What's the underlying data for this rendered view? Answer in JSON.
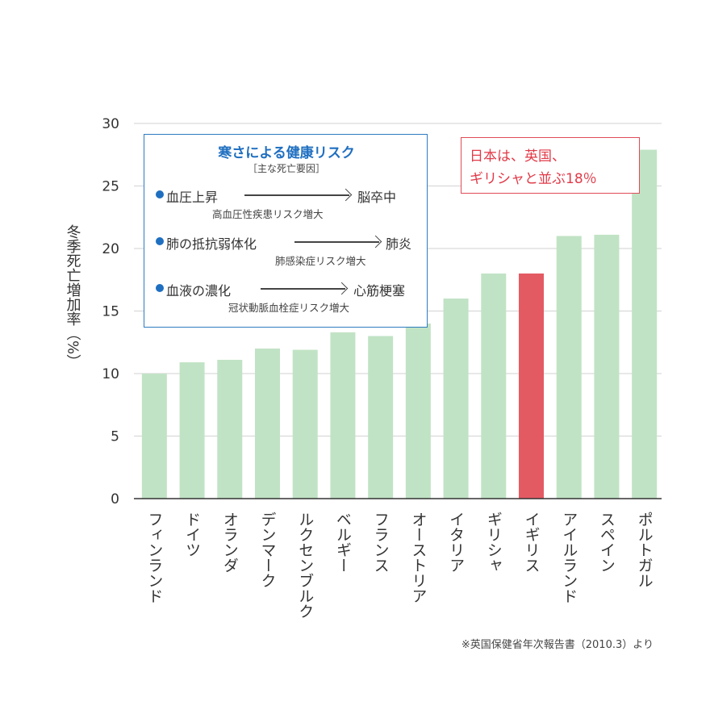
{
  "chart_data": {
    "type": "bar",
    "ylabel": "冬季死亡増加率（%）",
    "ylim": [
      0,
      30
    ],
    "yticks": [
      0,
      5,
      10,
      15,
      20,
      25,
      30
    ],
    "grid": true,
    "categories": [
      "フィンランド",
      "ドイツ",
      "オランダ",
      "デンマーク",
      "ルクセンブルク",
      "ベルギー",
      "フランス",
      "オーストリア",
      "イタリア",
      "ギリシャ",
      "イギリス",
      "アイルランド",
      "スペイン",
      "ポルトガル"
    ],
    "values": [
      10.0,
      10.9,
      11.1,
      12.0,
      11.9,
      13.3,
      13.0,
      14.0,
      16.0,
      18.0,
      18.0,
      21.0,
      21.1,
      27.9
    ],
    "highlight": "イギリス",
    "colors": {
      "bar": "#c1e3c5",
      "highlight": "#e45a63",
      "grid": "#d9d9d9",
      "axis": "#333333"
    }
  },
  "risk_box": {
    "title": "寒さによる健康リスク",
    "subtitle": "［主な死亡要因］",
    "items": [
      {
        "cause": "血圧上昇",
        "effect": "脳卒中",
        "note": "高血圧性疾患リスク増大"
      },
      {
        "cause": "肺の抵抗弱体化",
        "effect": "肺炎",
        "note": "肺感染症リスク増大"
      },
      {
        "cause": "血液の濃化",
        "effect": "心筋梗塞",
        "note": "冠状動脈血栓症リスク増大"
      }
    ]
  },
  "callout": {
    "line1": "日本は、英国、",
    "line2": "ギリシャと並ぶ18％"
  },
  "source": "※英国保健省年次報告書（2010.3）より"
}
